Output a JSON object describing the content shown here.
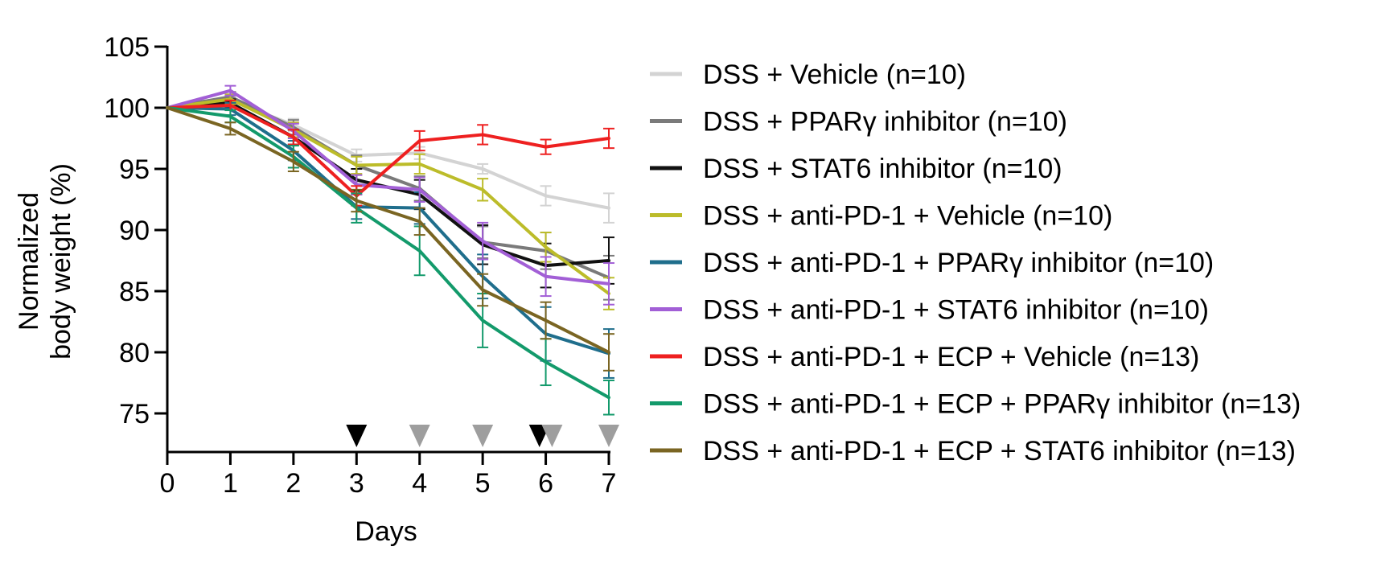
{
  "chart_data": {
    "type": "line",
    "x": [
      0,
      1,
      2,
      3,
      4,
      5,
      6,
      7
    ],
    "xlabel": "Days",
    "ylabel": "Normalized body weight (%)",
    "ylabel_lines": [
      "Normalized",
      "body weight (%)"
    ],
    "xlim": [
      0,
      7
    ],
    "ylim": [
      72,
      105
    ],
    "xticks": [
      0,
      1,
      2,
      3,
      4,
      5,
      6,
      7
    ],
    "yticks": [
      75,
      80,
      85,
      90,
      95,
      100,
      105
    ],
    "grid": false,
    "legend_position": "right",
    "series": [
      {
        "name": "DSS + Vehicle (n=10)",
        "color": "#d3d3d3",
        "values": [
          100,
          100.6,
          98.6,
          96.1,
          96.3,
          95.0,
          92.8,
          91.8
        ],
        "errors": [
          0,
          0.3,
          0.5,
          0.5,
          0.5,
          0.4,
          0.8,
          1.2
        ]
      },
      {
        "name": "DSS + PPARγ inhibitor (n=10)",
        "color": "#7a7a7a",
        "values": [
          100,
          100.9,
          98.4,
          95.3,
          93.4,
          89.0,
          88.3,
          86.1
        ],
        "errors": [
          0,
          0.4,
          0.6,
          0.8,
          1.0,
          1.3,
          1.5,
          1.8
        ]
      },
      {
        "name": "DSS + STAT6 inhibitor (n=10)",
        "color": "#111111",
        "values": [
          100,
          100.4,
          97.6,
          94.1,
          92.9,
          88.8,
          87.1,
          87.5
        ],
        "errors": [
          0,
          0.3,
          0.6,
          0.9,
          1.2,
          1.6,
          1.8,
          1.9
        ]
      },
      {
        "name": "DSS + anti-PD-1 + Vehicle (n=10)",
        "color": "#bcbc2a",
        "values": [
          100,
          100.7,
          98.2,
          95.3,
          95.4,
          93.3,
          88.6,
          84.8
        ],
        "errors": [
          0,
          0.4,
          0.6,
          0.7,
          0.8,
          0.9,
          1.2,
          1.3
        ]
      },
      {
        "name": "DSS + anti-PD-1 + PPARγ inhibitor (n=10)",
        "color": "#1f6e8c",
        "values": [
          100,
          99.9,
          96.5,
          91.9,
          91.8,
          86.2,
          81.5,
          79.9
        ],
        "errors": [
          0,
          0.5,
          0.8,
          1.0,
          1.3,
          1.8,
          2.2,
          2.0
        ]
      },
      {
        "name": "DSS + anti-PD-1 + STAT6 inhibitor (n=10)",
        "color": "#a25fd6",
        "values": [
          100,
          101.4,
          98.1,
          93.7,
          93.3,
          89.1,
          86.2,
          85.6
        ],
        "errors": [
          0,
          0.4,
          0.6,
          0.8,
          1.0,
          1.5,
          1.6,
          1.7
        ]
      },
      {
        "name": "DSS + anti-PD-1 + ECP + Vehicle (n=13)",
        "color": "#ee2020",
        "values": [
          100,
          100.2,
          97.6,
          92.8,
          97.3,
          97.8,
          96.8,
          97.5
        ],
        "errors": [
          0,
          0.4,
          0.6,
          0.8,
          0.8,
          0.8,
          0.6,
          0.8
        ]
      },
      {
        "name": "DSS + anti-PD-1 + ECP + PPARγ inhibitor (n=13)",
        "color": "#139a6b",
        "values": [
          100,
          99.3,
          96.0,
          91.8,
          88.3,
          82.6,
          79.2,
          76.3
        ],
        "errors": [
          0,
          0.5,
          0.9,
          1.2,
          2.0,
          2.2,
          1.9,
          1.4
        ]
      },
      {
        "name": "DSS + anti-PD-1 + ECP + STAT6 inhibitor (n=13)",
        "color": "#7a6522",
        "values": [
          100,
          98.3,
          95.6,
          92.4,
          90.7,
          85.1,
          82.6,
          80.0
        ],
        "errors": [
          0,
          0.5,
          0.8,
          0.9,
          1.1,
          1.3,
          1.5,
          1.5
        ]
      }
    ],
    "annotations": {
      "dose_markers": [
        {
          "x": 3.0,
          "color": "#000000"
        },
        {
          "x": 4.0,
          "color": "#9e9e9e"
        },
        {
          "x": 5.0,
          "color": "#9e9e9e"
        },
        {
          "x": 5.9,
          "color": "#000000"
        },
        {
          "x": 6.1,
          "color": "#9e9e9e"
        },
        {
          "x": 7.0,
          "color": "#9e9e9e"
        }
      ]
    }
  }
}
